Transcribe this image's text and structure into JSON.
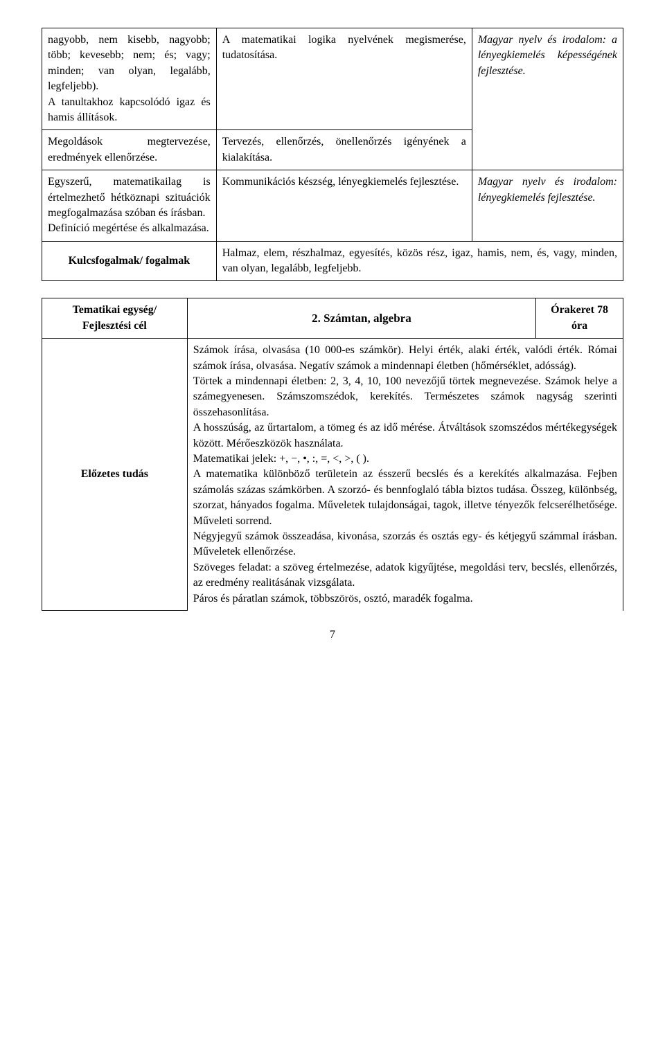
{
  "table1": {
    "r1": {
      "a": "nagyobb, nem kisebb, nagyobb; több; kevesebb; nem; és; vagy; minden; van olyan, legalább, legfeljebb).\nA tanultakhoz kapcsolódó igaz és hamis állítások.",
      "b": "A matematikai logika nyelvének megismerése, tudatosítása.",
      "c": "Magyar nyelv és irodalom: a lényegkiemelés képességének fejlesztése."
    },
    "r2": {
      "a": "Megoldások megtervezése, eredmények ellenőrzése.",
      "b": "Tervezés, ellenőrzés, önellenőrzés igényének a kialakítása."
    },
    "r3": {
      "a": "Egyszerű, matematikailag is értelmezhető hétköznapi szituációk megfogalmazása szóban és írásban.\nDefiníció megértése és alkalmazása.",
      "b": "Kommunikációs készség, lényegkiemelés fejlesztése.",
      "c": "Magyar nyelv és irodalom: lényegkiemelés fejlesztése."
    },
    "r4": {
      "a": "Kulcsfogalmak/ fogalmak",
      "b": "Halmaz, elem, részhalmaz, egyesítés, közös rész, igaz, hamis, nem, és, vagy, minden, van olyan, legalább, legfeljebb."
    }
  },
  "table2": {
    "r1": {
      "a": "Tematikai egység/ Fejlesztési cél",
      "b": "2. Számtan, algebra",
      "c": "Órakeret 78 óra"
    },
    "r2": {
      "a": "Előzetes tudás",
      "b": "Számok írása, olvasása (10 000-es számkör). Helyi érték, alaki érték, valódi érték. Római számok írása, olvasása. Negatív számok a mindennapi életben (hőmérséklet, adósság).\nTörtek a mindennapi életben: 2, 3, 4, 10, 100 nevezőjű törtek megnevezése. Számok helye a számegyenesen. Számszomszédok, kerekítés. Természetes számok nagyság szerinti összehasonlítása.\nA hosszúság, az űrtartalom, a tömeg és az idő mérése. Átváltások szomszédos mértékegységek között. Mérőeszközök használata.\nMatematikai jelek: +, −, •, :, =, <, >, ( ).\nA matematika különböző területein az ésszerű becslés és a kerekítés alkalmazása. Fejben számolás százas számkörben. A szorzó- és bennfoglaló tábla biztos tudása. Összeg, különbség, szorzat, hányados fogalma. Műveletek tulajdonságai, tagok, illetve tényezők felcserélhetősége. Műveleti sorrend.\nNégyjegyű számok összeadása, kivonása, szorzás és osztás egy- és kétjegyű számmal írásban. Műveletek ellenőrzése.\nSzöveges feladat: a szöveg értelmezése, adatok kigyűjtése, megoldási terv, becslés, ellenőrzés, az eredmény realitásának vizsgálata.\nPáros és páratlan számok, többszörös, osztó, maradék fogalma."
    }
  },
  "pagenum": "7"
}
